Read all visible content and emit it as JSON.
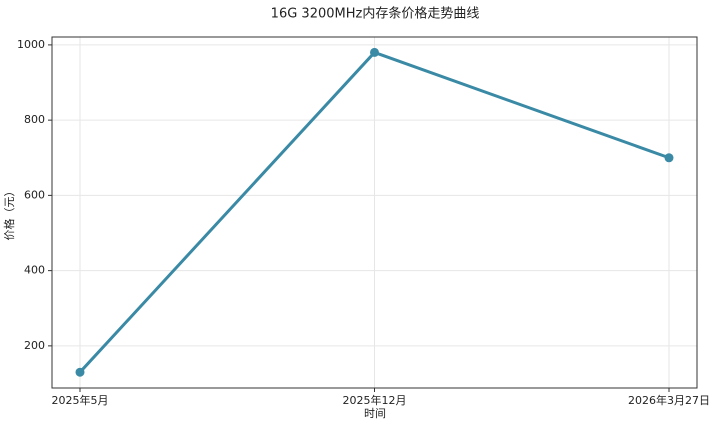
{
  "chart_data": {
    "type": "line",
    "title": "16G 3200MHz内存条价格走势曲线",
    "x_label": "时间",
    "y_label": "价格（元）",
    "categories": [
      "2025年5月",
      "2025年12月",
      "2026年3月27日"
    ],
    "series": [
      {
        "name": "价格",
        "color": "#3a8aa6",
        "values": [
          130,
          980,
          700
        ]
      }
    ],
    "ylim": [
      88,
      1021
    ],
    "yticks": [
      200,
      400,
      600,
      800,
      1000
    ],
    "grid": true
  }
}
